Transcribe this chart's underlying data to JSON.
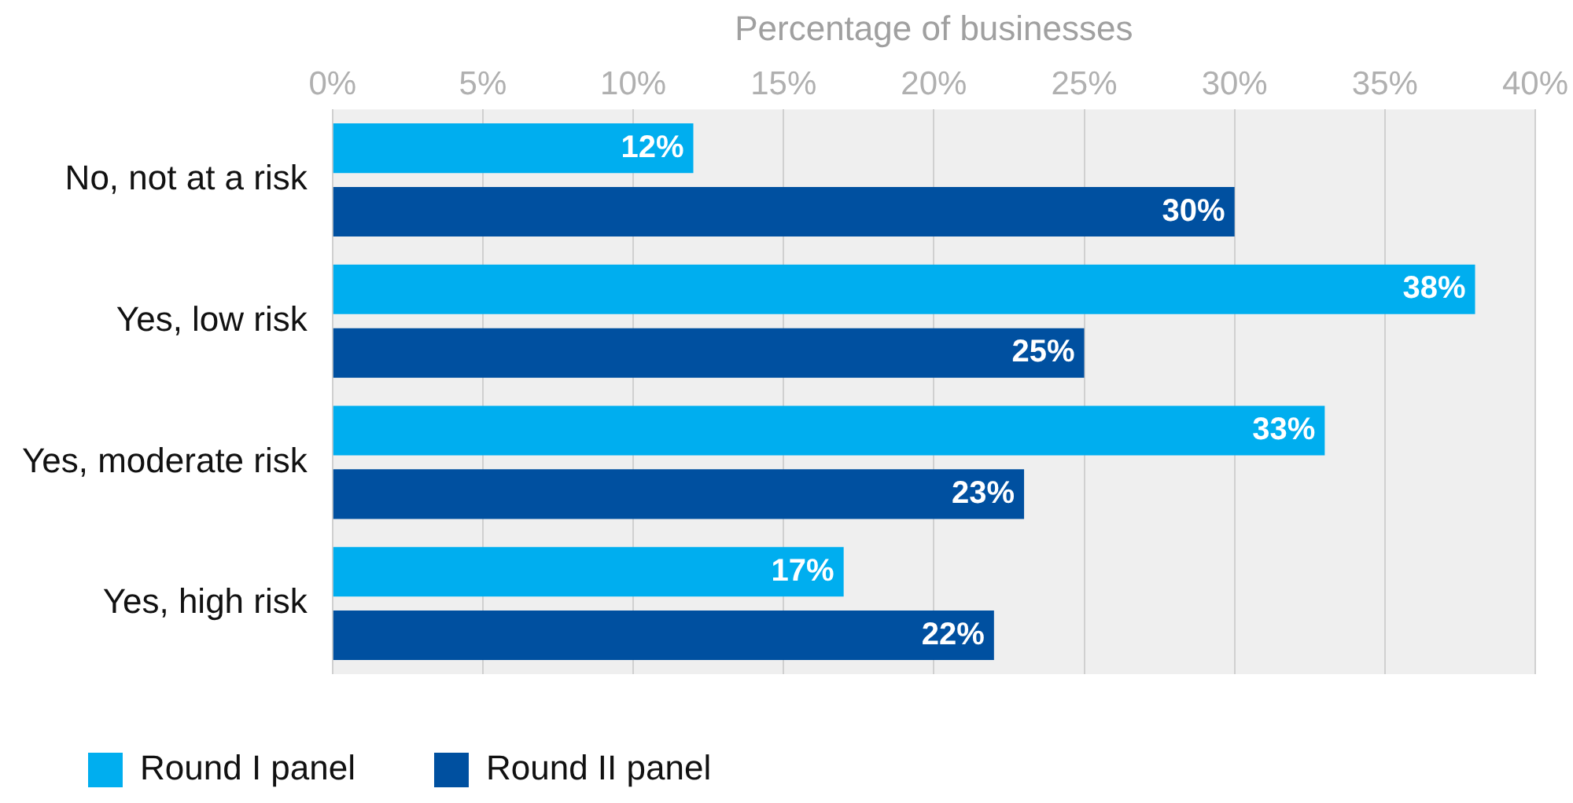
{
  "chart_data": {
    "type": "bar",
    "orientation": "horizontal",
    "xlabel": "Percentage of businesses",
    "categories": [
      "No, not at a risk",
      "Yes, low risk",
      "Yes, moderate risk",
      "Yes, high risk"
    ],
    "series": [
      {
        "name": "Round I panel",
        "color": "#00aeef",
        "values": [
          12,
          38,
          33,
          17
        ],
        "value_labels": [
          "12%",
          "38%",
          "33%",
          "17%"
        ]
      },
      {
        "name": "Round II panel",
        "color": "#0050a0",
        "values": [
          30,
          25,
          23,
          22
        ],
        "value_labels": [
          "30%",
          "25%",
          "23%",
          "22%"
        ]
      }
    ],
    "xlim": [
      0,
      40
    ],
    "xticks": [
      {
        "value": 0,
        "label": "0%"
      },
      {
        "value": 5,
        "label": "5%"
      },
      {
        "value": 10,
        "label": "10%"
      },
      {
        "value": 15,
        "label": "15%"
      },
      {
        "value": 20,
        "label": "20%"
      },
      {
        "value": 25,
        "label": "25%"
      },
      {
        "value": 30,
        "label": "30%"
      },
      {
        "value": 35,
        "label": "35%"
      },
      {
        "value": 40,
        "label": "40%"
      }
    ],
    "grid": "x",
    "legend": "bottom"
  }
}
